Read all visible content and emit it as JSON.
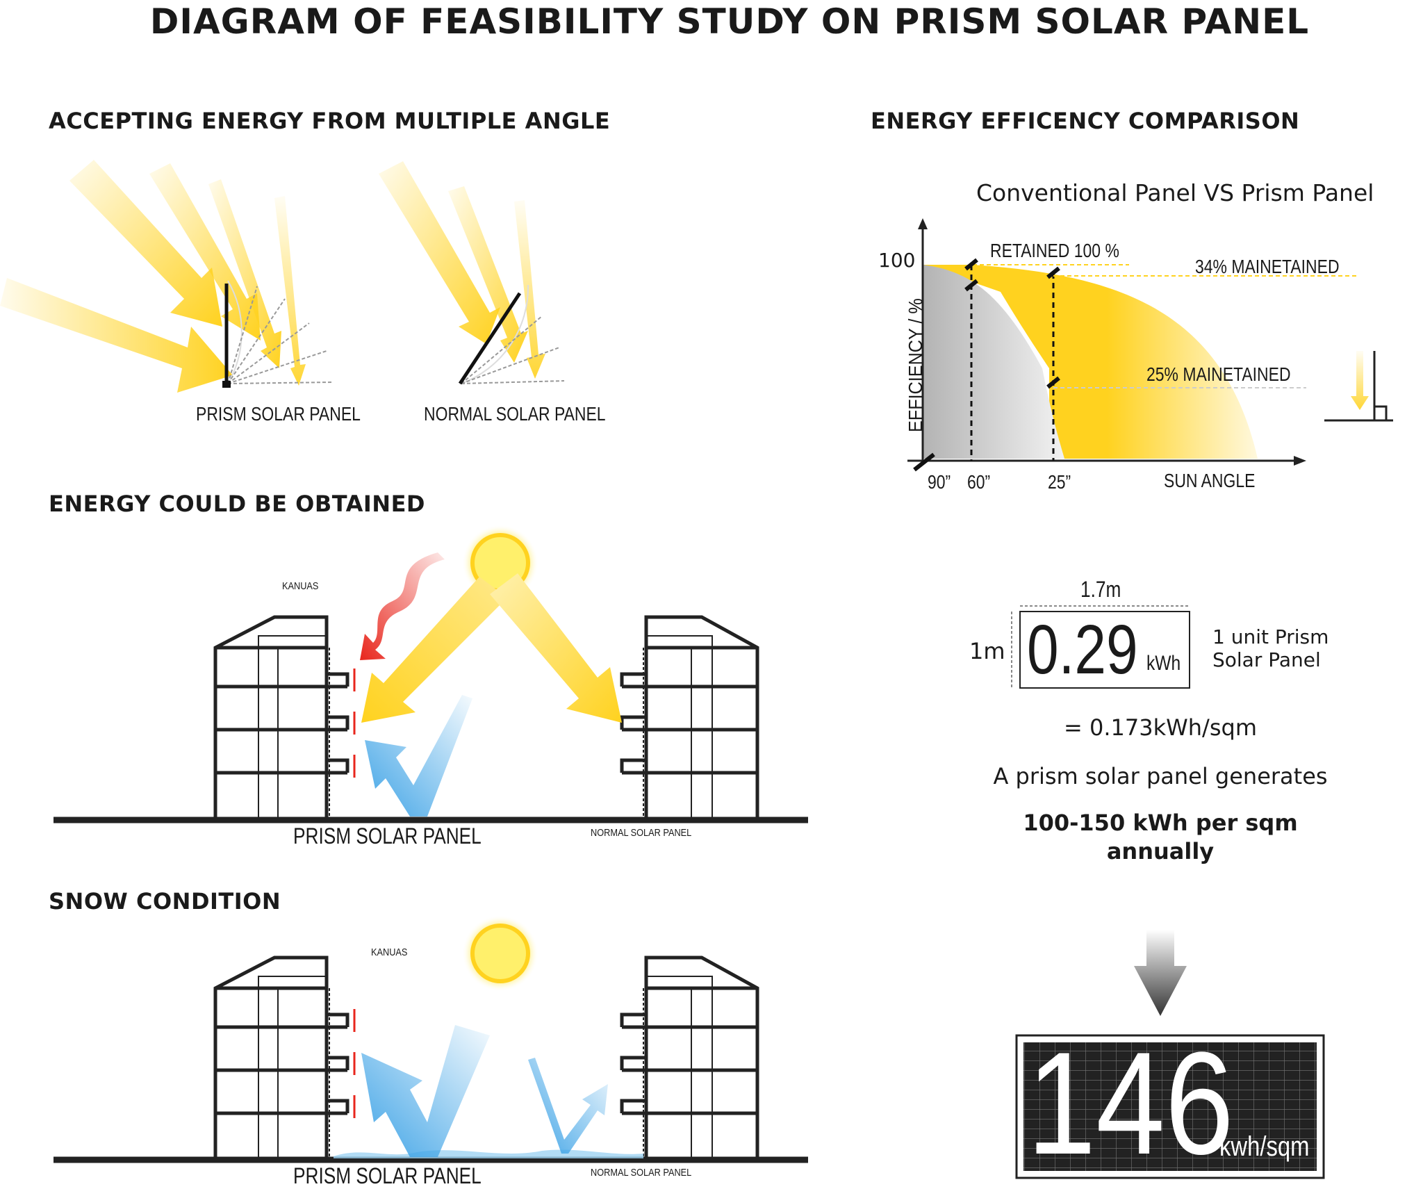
{
  "title": "DIAGRAM OF FEASIBILITY STUDY ON PRISM SOLAR PANEL",
  "sections": {
    "angle": "ACCEPTING ENERGY FROM MULTIPLE ANGLE",
    "energy": "ENERGY COULD BE OBTAINED",
    "snow": "SNOW CONDITION",
    "comparison": "ENERGY EFFICENCY COMPARISON"
  },
  "angle_labels": {
    "prism": "PRISM SOLAR PANEL",
    "normal": "NORMAL SOLAR PANEL"
  },
  "energy_scene": {
    "building_label": "KANUAS",
    "prism_label": "PRISM SOLAR PANEL",
    "normal_label": "NORMAL SOLAR PANEL"
  },
  "snow_scene": {
    "building_label": "KANUAS",
    "prism_label": "PRISM SOLAR PANEL",
    "normal_label": "NORMAL SOLAR PANEL"
  },
  "chart_data": {
    "type": "area",
    "title": "Conventional Panel VS Prism Panel",
    "xlabel": "SUN ANGLE",
    "ylabel": "EFFICIENCY / %",
    "y_tick": "100",
    "x_ticks": [
      "90”",
      "60”",
      "25”"
    ],
    "series": [
      {
        "name": "Conventional Panel",
        "color": "#bdbdbd"
      },
      {
        "name": "Prism Panel",
        "color": "#ffd21f"
      }
    ],
    "annotations": [
      "RETAINED 100 %",
      "34% MAINETAINED",
      "25% MAINETAINED"
    ]
  },
  "unit": {
    "width": "1.7m",
    "height": "1m",
    "value": "0.29",
    "value_unit": "kWh",
    "caption_line1": "1 unit Prism",
    "caption_line2": "Solar Panel",
    "per_sqm": "= 0.173kWh/sqm",
    "generates": "A prism solar panel generates",
    "annual_line1": "100-150 kWh per sqm",
    "annual_line2": "annually"
  },
  "result": {
    "value": "146",
    "unit": "kwh/sqm"
  },
  "colors": {
    "sun": "#ffe000",
    "ray": "#ffd21f",
    "heat": "#e8261c",
    "reflect": "#3ea3e6",
    "dark": "#222222"
  }
}
